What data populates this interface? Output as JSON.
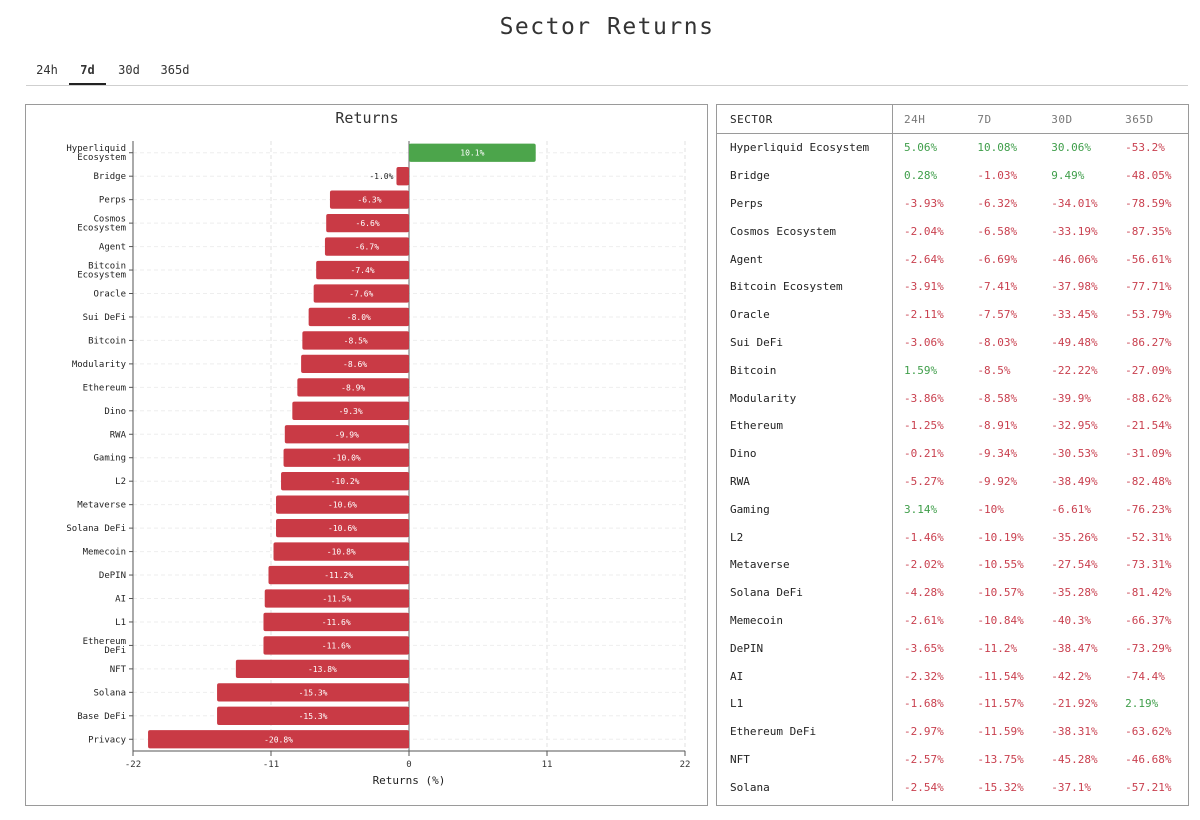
{
  "page": {
    "title": "Sector Returns"
  },
  "tabs": [
    {
      "label": "24h",
      "active": false
    },
    {
      "label": "7d",
      "active": true
    },
    {
      "label": "30d",
      "active": false
    },
    {
      "label": "365d",
      "active": false
    }
  ],
  "colors": {
    "positive": "#3f9e4a",
    "negative": "#c9404f",
    "bar_positive": "#4ca54b",
    "bar_negative": "#c93a45"
  },
  "chart_data": {
    "type": "bar",
    "orientation": "horizontal",
    "title": "Returns",
    "xlabel": "Returns (%)",
    "ylabel": "",
    "xlim": [
      -22,
      22
    ],
    "xticks": [
      "-22",
      "-11",
      "0",
      "11",
      "22"
    ],
    "grid": true,
    "categories": [
      [
        "Hyperliquid",
        "Ecosystem"
      ],
      [
        "Bridge"
      ],
      [
        "Perps"
      ],
      [
        "Cosmos",
        "Ecosystem"
      ],
      [
        "Agent"
      ],
      [
        "Bitcoin",
        "Ecosystem"
      ],
      [
        "Oracle"
      ],
      [
        "Sui DeFi"
      ],
      [
        "Bitcoin"
      ],
      [
        "Modularity"
      ],
      [
        "Ethereum"
      ],
      [
        "Dino"
      ],
      [
        "RWA"
      ],
      [
        "Gaming"
      ],
      [
        "L2"
      ],
      [
        "Metaverse"
      ],
      [
        "Solana DeFi"
      ],
      [
        "Memecoin"
      ],
      [
        "DePIN"
      ],
      [
        "AI"
      ],
      [
        "L1"
      ],
      [
        "Ethereum",
        "DeFi"
      ],
      [
        "NFT"
      ],
      [
        "Solana"
      ],
      [
        "Base DeFi"
      ],
      [
        "Privacy"
      ]
    ],
    "values": [
      10.1,
      -1.0,
      -6.3,
      -6.6,
      -6.7,
      -7.4,
      -7.6,
      -8.0,
      -8.5,
      -8.6,
      -8.9,
      -9.3,
      -9.9,
      -10.0,
      -10.2,
      -10.6,
      -10.6,
      -10.8,
      -11.2,
      -11.5,
      -11.6,
      -11.6,
      -13.8,
      -15.3,
      -15.3,
      -20.8
    ],
    "data_labels": [
      "10.1%",
      "-1.0%",
      "-6.3%",
      "-6.6%",
      "-6.7%",
      "-7.4%",
      "-7.6%",
      "-8.0%",
      "-8.5%",
      "-8.6%",
      "-8.9%",
      "-9.3%",
      "-9.9%",
      "-10.0%",
      "-10.2%",
      "-10.6%",
      "-10.6%",
      "-10.8%",
      "-11.2%",
      "-11.5%",
      "-11.6%",
      "-11.6%",
      "-13.8%",
      "-15.3%",
      "-15.3%",
      "-20.8%"
    ]
  },
  "table": {
    "headers": [
      "SECTOR",
      "24H",
      "7D",
      "30D",
      "365D"
    ],
    "rows": [
      [
        "Hyperliquid Ecosystem",
        "5.06%",
        "10.08%",
        "30.06%",
        "-53.2%"
      ],
      [
        "Bridge",
        "0.28%",
        "-1.03%",
        "9.49%",
        "-48.05%"
      ],
      [
        "Perps",
        "-3.93%",
        "-6.32%",
        "-34.01%",
        "-78.59%"
      ],
      [
        "Cosmos Ecosystem",
        "-2.04%",
        "-6.58%",
        "-33.19%",
        "-87.35%"
      ],
      [
        "Agent",
        "-2.64%",
        "-6.69%",
        "-46.06%",
        "-56.61%"
      ],
      [
        "Bitcoin Ecosystem",
        "-3.91%",
        "-7.41%",
        "-37.98%",
        "-77.71%"
      ],
      [
        "Oracle",
        "-2.11%",
        "-7.57%",
        "-33.45%",
        "-53.79%"
      ],
      [
        "Sui DeFi",
        "-3.06%",
        "-8.03%",
        "-49.48%",
        "-86.27%"
      ],
      [
        "Bitcoin",
        "1.59%",
        "-8.5%",
        "-22.22%",
        "-27.09%"
      ],
      [
        "Modularity",
        "-3.86%",
        "-8.58%",
        "-39.9%",
        "-88.62%"
      ],
      [
        "Ethereum",
        "-1.25%",
        "-8.91%",
        "-32.95%",
        "-21.54%"
      ],
      [
        "Dino",
        "-0.21%",
        "-9.34%",
        "-30.53%",
        "-31.09%"
      ],
      [
        "RWA",
        "-5.27%",
        "-9.92%",
        "-38.49%",
        "-82.48%"
      ],
      [
        "Gaming",
        "3.14%",
        "-10%",
        "-6.61%",
        "-76.23%"
      ],
      [
        "L2",
        "-1.46%",
        "-10.19%",
        "-35.26%",
        "-52.31%"
      ],
      [
        "Metaverse",
        "-2.02%",
        "-10.55%",
        "-27.54%",
        "-73.31%"
      ],
      [
        "Solana DeFi",
        "-4.28%",
        "-10.57%",
        "-35.28%",
        "-81.42%"
      ],
      [
        "Memecoin",
        "-2.61%",
        "-10.84%",
        "-40.3%",
        "-66.37%"
      ],
      [
        "DePIN",
        "-3.65%",
        "-11.2%",
        "-38.47%",
        "-73.29%"
      ],
      [
        "AI",
        "-2.32%",
        "-11.54%",
        "-42.2%",
        "-74.4%"
      ],
      [
        "L1",
        "-1.68%",
        "-11.57%",
        "-21.92%",
        "2.19%"
      ],
      [
        "Ethereum DeFi",
        "-2.97%",
        "-11.59%",
        "-38.31%",
        "-63.62%"
      ],
      [
        "NFT",
        "-2.57%",
        "-13.75%",
        "-45.28%",
        "-46.68%"
      ],
      [
        "Solana",
        "-2.54%",
        "-15.32%",
        "-37.1%",
        "-57.21%"
      ]
    ]
  }
}
